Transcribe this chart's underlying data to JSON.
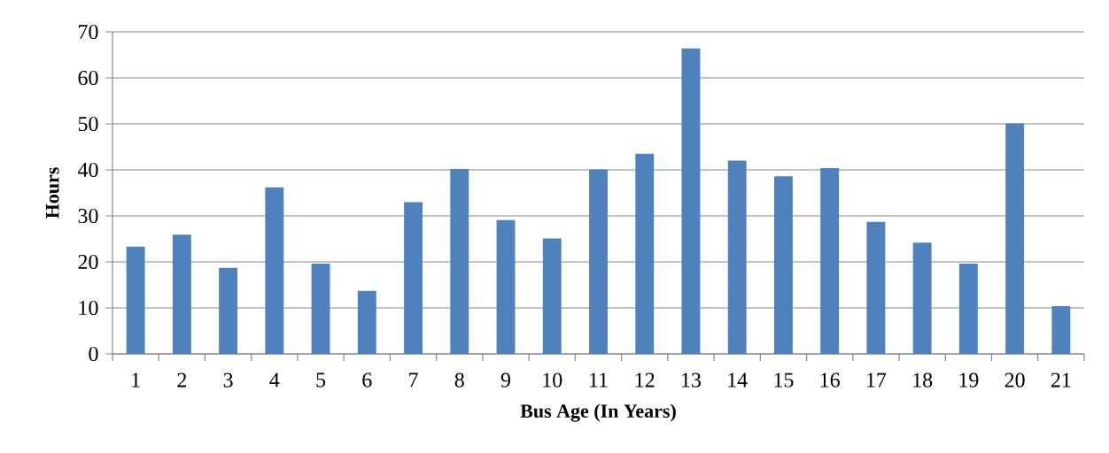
{
  "chart_data": {
    "type": "bar",
    "xlabel": "Bus Age (In Years)",
    "ylabel": "Hours",
    "categories": [
      "1",
      "2",
      "3",
      "4",
      "5",
      "6",
      "7",
      "8",
      "9",
      "10",
      "11",
      "12",
      "13",
      "14",
      "15",
      "16",
      "17",
      "18",
      "19",
      "20",
      "21"
    ],
    "values": [
      23.3,
      25.9,
      18.7,
      36.2,
      19.6,
      13.7,
      33.0,
      40.2,
      29.1,
      25.1,
      40.1,
      43.5,
      66.4,
      42.0,
      38.6,
      40.4,
      28.7,
      24.2,
      19.6,
      50.1,
      10.4
    ],
    "color": "#4f81bd",
    "ylim": [
      0,
      70
    ],
    "yticks": [
      0,
      10,
      20,
      30,
      40,
      50,
      60,
      70
    ],
    "grid": "y"
  }
}
